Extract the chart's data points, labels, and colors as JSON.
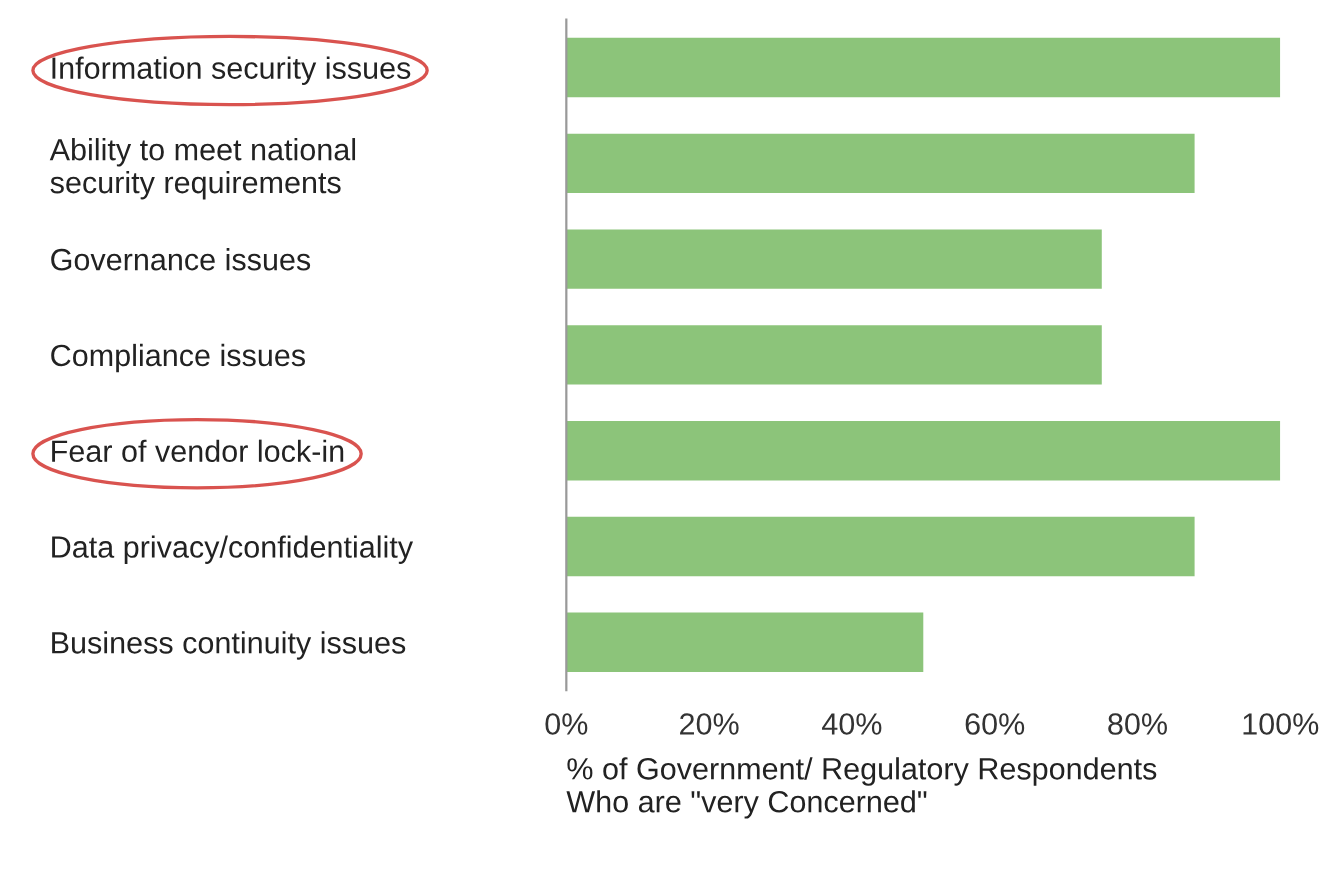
{
  "chart_data": {
    "type": "bar",
    "orientation": "horizontal",
    "categories": [
      "Information security issues",
      "Ability to meet national\nsecurity requirements",
      "Governance issues",
      "Compliance issues",
      "Fear of vendor lock-in",
      "Data privacy/confidentiality",
      "Business continuity issues"
    ],
    "values": [
      100,
      88,
      75,
      75,
      100,
      88,
      50
    ],
    "color": "#8cc47a",
    "xlim": [
      0,
      100
    ],
    "xticks": [
      {
        "value": 0,
        "label": "0%"
      },
      {
        "value": 20,
        "label": "20%"
      },
      {
        "value": 40,
        "label": "40%"
      },
      {
        "value": 60,
        "label": "60%"
      },
      {
        "value": 80,
        "label": "80%"
      },
      {
        "value": 100,
        "label": "100%"
      }
    ],
    "xlabel": "% of Government/ Regulatory Respondents\nWho are \"very Concerned\"",
    "grid": false,
    "legend": false
  }
}
